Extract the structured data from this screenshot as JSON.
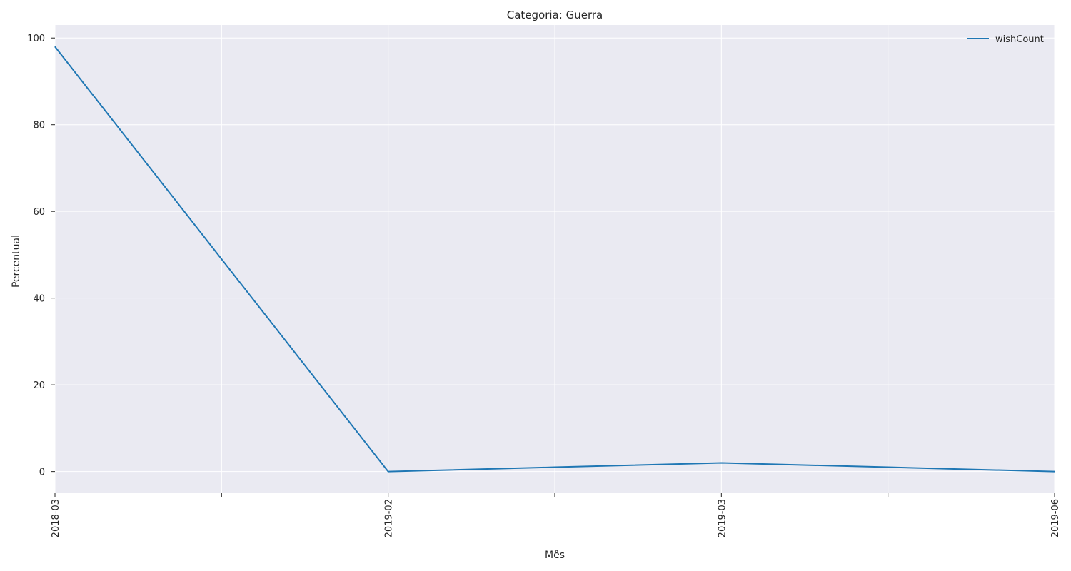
{
  "chart_data": {
    "type": "line",
    "title": "Categoria: Guerra",
    "xlabel": "Mês",
    "ylabel": "Percentual",
    "x": [
      "2018-03",
      "",
      "2019-02",
      "",
      "2019-03",
      "",
      "2019-06"
    ],
    "x_tick_labels": [
      "2018-03",
      "2019-02",
      "2019-03",
      "2019-06"
    ],
    "series": [
      {
        "name": "wishCount",
        "values": [
          98,
          49,
          0,
          1,
          2,
          1,
          0
        ],
        "color": "#1f77b4"
      }
    ],
    "yticks": [
      0,
      20,
      40,
      60,
      80,
      100
    ],
    "ylim": [
      -5,
      103
    ],
    "grid": true,
    "legend_position": "top-right",
    "background_color": "#eaeaf2"
  }
}
